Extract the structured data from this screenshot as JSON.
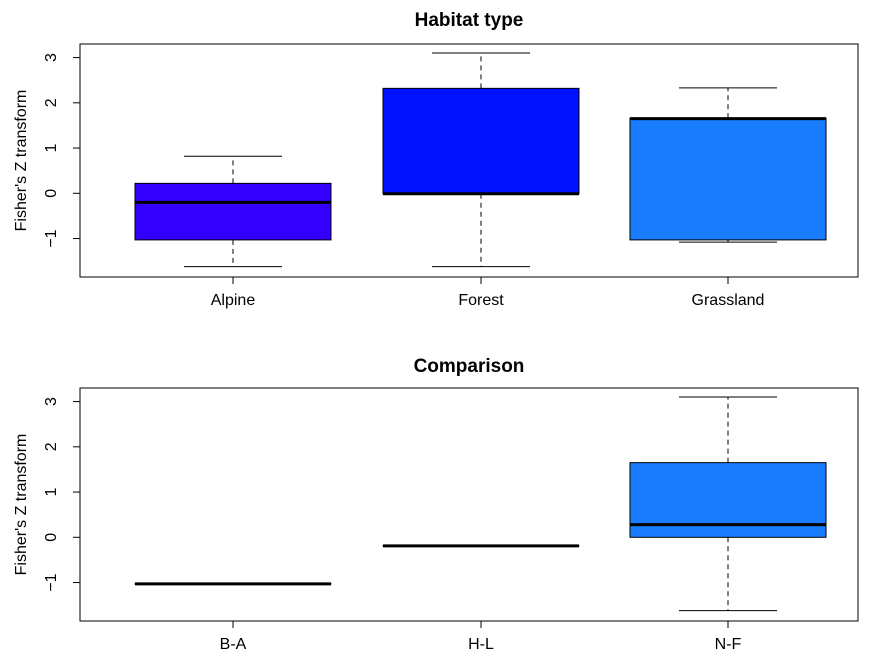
{
  "chart_data": [
    {
      "type": "box",
      "title": "Habitat type",
      "ylabel": "Fisher's Z transform",
      "xlabel": "",
      "ylim": [
        -1.85,
        3.3
      ],
      "yticks": [
        -1,
        0,
        1,
        2,
        3
      ],
      "ytick_labels": [
        "−1",
        "0",
        "1",
        "2",
        "3"
      ],
      "grid": false,
      "categories": [
        "Alpine",
        "Forest",
        "Grassland"
      ],
      "boxes": [
        {
          "category": "Alpine",
          "whisker_low": -1.62,
          "q1": -1.03,
          "median": -0.2,
          "q3": 0.22,
          "whisker_high": 0.82,
          "color": "#3300ff"
        },
        {
          "category": "Forest",
          "whisker_low": -1.62,
          "q1": -0.01,
          "median": -0.01,
          "q3": 2.32,
          "whisker_high": 3.1,
          "color": "#0011ff"
        },
        {
          "category": "Grassland",
          "whisker_low": -1.08,
          "q1": -1.03,
          "median": 1.65,
          "q3": 1.66,
          "whisker_high": 2.33,
          "color": "#1a7cff"
        }
      ]
    },
    {
      "type": "box",
      "title": "Comparison",
      "ylabel": "Fisher's Z transform",
      "xlabel": "",
      "ylim": [
        -1.85,
        3.3
      ],
      "yticks": [
        -1,
        0,
        1,
        2,
        3
      ],
      "ytick_labels": [
        "−1",
        "0",
        "1",
        "2",
        "3"
      ],
      "grid": false,
      "categories": [
        "B-A",
        "H-L",
        "N-F"
      ],
      "boxes": [
        {
          "category": "B-A",
          "whisker_low": -1.03,
          "q1": -1.03,
          "median": -1.03,
          "q3": -1.03,
          "whisker_high": -1.03,
          "color": "#0a0aff"
        },
        {
          "category": "H-L",
          "whisker_low": -0.19,
          "q1": -0.19,
          "median": -0.19,
          "q3": -0.19,
          "whisker_high": -0.19,
          "color": "#0a0aff"
        },
        {
          "category": "N-F",
          "whisker_low": -1.62,
          "q1": 0.0,
          "median": 0.28,
          "q3": 1.65,
          "whisker_high": 3.1,
          "color": "#1a7cff"
        }
      ]
    }
  ]
}
